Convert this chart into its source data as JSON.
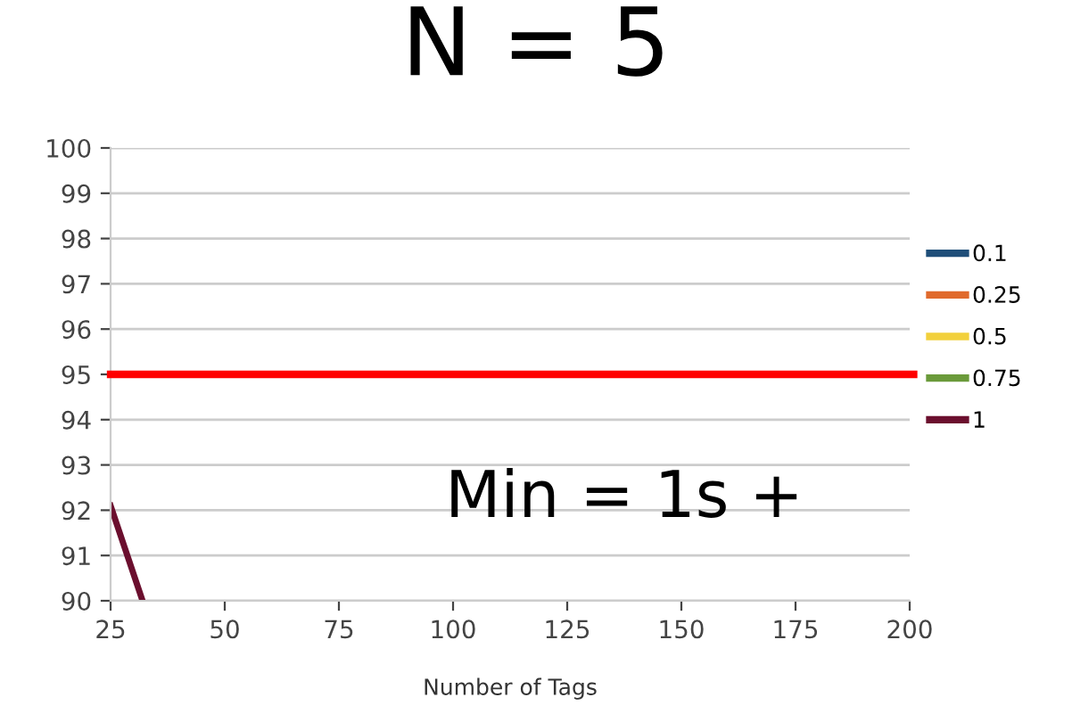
{
  "chart_data": {
    "type": "line",
    "title": "N = 5",
    "xlabel": "Number of Tags",
    "xlim": [
      25,
      200
    ],
    "xticks": [
      25,
      50,
      75,
      100,
      125,
      150,
      175,
      200
    ],
    "ylim": [
      90,
      100
    ],
    "yticks": [
      90,
      91,
      92,
      93,
      94,
      95,
      96,
      97,
      98,
      99,
      100
    ],
    "grid": "y",
    "legend": "right",
    "marker": "none",
    "line_style": "solid",
    "series": [
      {
        "name": "0.1",
        "color": "#1f4e79"
      },
      {
        "name": "0.25",
        "color": "#e06a2c"
      },
      {
        "name": "0.5",
        "color": "#f2d03b"
      },
      {
        "name": "0.75",
        "color": "#6a9a3a"
      },
      {
        "name": "1",
        "color": "#6b0f2e",
        "x": [
          25,
          32
        ],
        "values": [
          92.1,
          90
        ]
      }
    ],
    "ref_lines": [
      {
        "axis": "y",
        "value": 95,
        "label": null,
        "color": "#ff0000"
      }
    ],
    "annotations": [
      "Min = 1s +"
    ]
  }
}
